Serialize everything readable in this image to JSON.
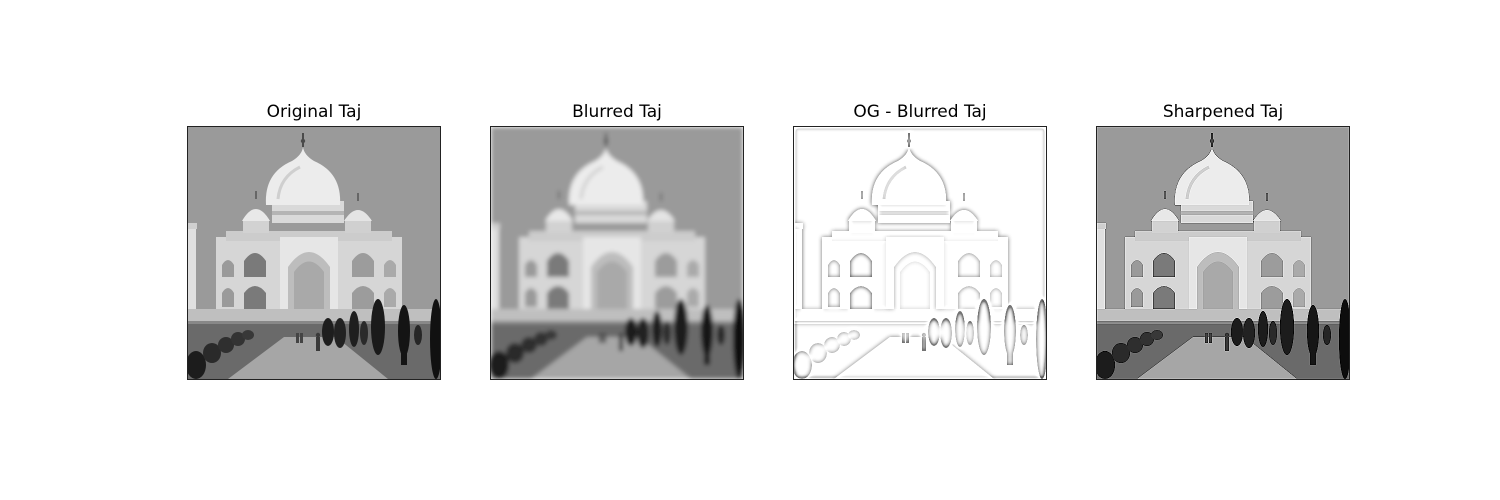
{
  "figure": {
    "panels": [
      {
        "id": "original",
        "title": "Original Taj"
      },
      {
        "id": "blurred",
        "title": "Blurred Taj"
      },
      {
        "id": "difference",
        "title": "OG - Blurred Taj"
      },
      {
        "id": "sharpened",
        "title": "Sharpened Taj"
      }
    ]
  }
}
